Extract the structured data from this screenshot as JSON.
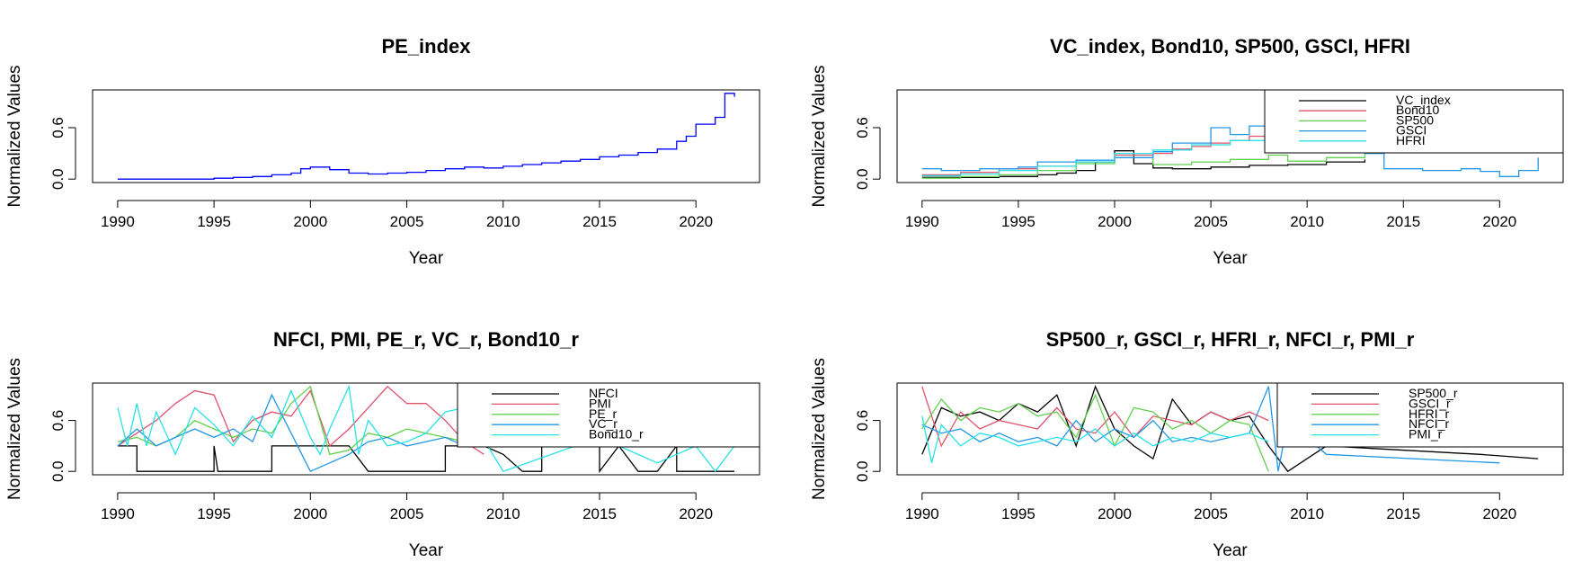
{
  "chart_data": [
    {
      "type": "line",
      "title": "PE_index",
      "xlabel": "Year",
      "ylabel": "Normalized Values",
      "xlim": [
        1988.7,
        2023.3
      ],
      "ylim": [
        -0.04,
        1.04
      ],
      "x_ticks": [
        "1990",
        "1995",
        "2000",
        "2005",
        "2010",
        "2015",
        "2020"
      ],
      "y_ticks": [
        "0.0",
        "0.6"
      ],
      "grid": false,
      "legend": null,
      "series": [
        {
          "color": "#0000FF",
          "step": true,
          "x": [
            1990,
            1991,
            1992,
            1993,
            1994,
            1995,
            1996,
            1997,
            1998,
            1999,
            1999.5,
            2000,
            2001,
            2002,
            2003,
            2004,
            2005,
            2006,
            2007,
            2008,
            2009,
            2010,
            2011,
            2012,
            2013,
            2014,
            2015,
            2016,
            2017,
            2018,
            2019,
            2019.5,
            2020,
            2021,
            2021.5,
            2022
          ],
          "values": [
            0.0,
            0.0,
            0.0,
            0.0,
            0.0,
            0.01,
            0.02,
            0.03,
            0.05,
            0.07,
            0.12,
            0.14,
            0.11,
            0.07,
            0.06,
            0.07,
            0.08,
            0.1,
            0.12,
            0.14,
            0.13,
            0.15,
            0.17,
            0.19,
            0.21,
            0.23,
            0.26,
            0.28,
            0.31,
            0.35,
            0.44,
            0.5,
            0.64,
            0.72,
            1.0,
            0.96
          ]
        }
      ]
    },
    {
      "type": "line",
      "title": "VC_index, Bond10, SP500, GSCI, HFRI",
      "xlabel": "Year",
      "ylabel": "Normalized Values",
      "xlim": [
        1988.7,
        2023.3
      ],
      "ylim": [
        -0.04,
        1.04
      ],
      "x_ticks": [
        "1990",
        "1995",
        "2000",
        "2005",
        "2010",
        "2015",
        "2020"
      ],
      "y_ticks": [
        "0.0",
        "0.6"
      ],
      "grid": false,
      "legend": "top-right",
      "series": [
        {
          "name": "VC_index",
          "color": "#000000",
          "step": true,
          "x": [
            1990,
            1992,
            1994,
            1996,
            1997,
            1998,
            1999,
            2000,
            2001,
            2002,
            2003,
            2005,
            2007,
            2009,
            2011,
            2013
          ],
          "values": [
            0.02,
            0.02,
            0.03,
            0.05,
            0.07,
            0.1,
            0.2,
            0.33,
            0.18,
            0.13,
            0.12,
            0.14,
            0.16,
            0.17,
            0.2,
            0.23
          ]
        },
        {
          "name": "Bond10",
          "color": "#DF536B",
          "step": true,
          "x": [
            1990,
            1992,
            1994,
            1996,
            1998,
            2000,
            2002,
            2003,
            2004,
            2005,
            2006,
            2007,
            2008,
            2009,
            2010,
            2012
          ],
          "values": [
            0.05,
            0.08,
            0.12,
            0.15,
            0.2,
            0.28,
            0.3,
            0.35,
            0.38,
            0.42,
            0.45,
            0.5,
            0.55,
            0.6,
            0.65,
            0.68
          ]
        },
        {
          "name": "SP500",
          "color": "#61D04F",
          "step": true,
          "x": [
            1990,
            1992,
            1994,
            1996,
            1998,
            2000,
            2002,
            2004,
            2006,
            2008,
            2009,
            2011,
            2013
          ],
          "values": [
            0.01,
            0.03,
            0.05,
            0.1,
            0.18,
            0.25,
            0.17,
            0.2,
            0.23,
            0.28,
            0.21,
            0.25,
            0.3
          ]
        },
        {
          "name": "GSCI",
          "color": "#2297E6",
          "step": true,
          "x": [
            1990,
            1991,
            1993,
            1995,
            1996,
            1998,
            2000,
            2002,
            2003,
            2005,
            2006,
            2007,
            2008,
            2013,
            2014,
            2016,
            2018,
            2019,
            2020,
            2021,
            2022
          ],
          "values": [
            0.12,
            0.1,
            0.12,
            0.14,
            0.2,
            0.22,
            0.25,
            0.32,
            0.42,
            0.6,
            0.52,
            0.62,
            0.9,
            0.3,
            0.12,
            0.1,
            0.12,
            0.09,
            0.03,
            0.1,
            0.25
          ]
        },
        {
          "name": "HFRI",
          "color": "#28E2E5",
          "step": true,
          "x": [
            1990,
            1992,
            1994,
            1996,
            1998,
            2000,
            2002,
            2004,
            2006,
            2008
          ],
          "values": [
            0.04,
            0.06,
            0.1,
            0.15,
            0.2,
            0.3,
            0.34,
            0.4,
            0.45,
            0.52
          ]
        }
      ]
    },
    {
      "type": "line",
      "title": "NFCI, PMI, PE_r, VC_r, Bond10_r",
      "xlabel": "Year",
      "ylabel": "Normalized Values",
      "xlim": [
        1988.7,
        2023.3
      ],
      "ylim": [
        -0.04,
        1.04
      ],
      "x_ticks": [
        "1990",
        "1995",
        "2000",
        "2005",
        "2010",
        "2015",
        "2020"
      ],
      "y_ticks": [
        "0.0",
        "0.6"
      ],
      "grid": false,
      "legend": "top-right",
      "series": [
        {
          "name": "NFCI",
          "color": "#000000",
          "x": [
            1990,
            1991,
            1991,
            1995,
            1995,
            1995.2,
            1998,
            1998,
            2002,
            2003,
            2007,
            2007,
            2009,
            2010,
            2011,
            2012,
            2012,
            2015,
            2015,
            2016,
            2017,
            2018,
            2019,
            2019,
            2020,
            2021,
            2022
          ],
          "values": [
            0.3,
            0.3,
            0.0,
            0.0,
            0.3,
            0.0,
            0.0,
            0.3,
            0.3,
            0.0,
            0.0,
            0.3,
            0.3,
            0.2,
            0.0,
            0.0,
            0.3,
            0.3,
            0.0,
            0.3,
            0.0,
            0.0,
            0.3,
            0.0,
            0.0,
            0.0,
            0.0
          ]
        },
        {
          "name": "PMI",
          "color": "#DF536B",
          "x": [
            1990,
            1991,
            1992,
            1993,
            1994,
            1995,
            1996,
            1997,
            1998,
            1999,
            2000,
            2001,
            2002,
            2003,
            2004,
            2005,
            2006,
            2007,
            2008,
            2009
          ],
          "values": [
            0.3,
            0.45,
            0.6,
            0.8,
            0.95,
            0.9,
            0.35,
            0.6,
            0.7,
            0.65,
            0.95,
            0.3,
            0.5,
            0.75,
            1.0,
            0.8,
            0.8,
            0.6,
            0.35,
            0.2
          ]
        },
        {
          "name": "PE_r",
          "color": "#61D04F",
          "x": [
            1990,
            1991,
            1992,
            1993,
            1994,
            1995,
            1996,
            1997,
            1998,
            1999,
            2000,
            2001,
            2002,
            2003,
            2004,
            2005,
            2006,
            2007,
            2008
          ],
          "values": [
            0.35,
            0.4,
            0.3,
            0.4,
            0.6,
            0.5,
            0.4,
            0.5,
            0.45,
            0.8,
            1.0,
            0.2,
            0.25,
            0.45,
            0.4,
            0.5,
            0.45,
            0.4,
            0.35
          ]
        },
        {
          "name": "VC_r",
          "color": "#2297E6",
          "x": [
            1990,
            1991,
            1992,
            1993,
            1994,
            1995,
            1996,
            1997,
            1998,
            1999,
            2000,
            2001,
            2002,
            2003,
            2004,
            2005,
            2006,
            2007,
            2008
          ],
          "values": [
            0.3,
            0.5,
            0.3,
            0.4,
            0.5,
            0.4,
            0.5,
            0.35,
            0.9,
            0.45,
            0.0,
            0.1,
            0.2,
            0.35,
            0.4,
            0.3,
            0.35,
            0.4,
            0.3
          ]
        },
        {
          "name": "Bond10_r",
          "color": "#28E2E5",
          "x": [
            1990,
            1990.5,
            1991,
            1991.5,
            1992,
            1993,
            1994,
            1995,
            1996,
            1997,
            1998,
            1999,
            2000,
            2000.5,
            2001,
            2002,
            2002.5,
            2003,
            2004,
            2005,
            2006,
            2007,
            2008,
            2010,
            2015,
            2018,
            2020,
            2021,
            2022
          ],
          "values": [
            0.75,
            0.3,
            0.8,
            0.3,
            0.7,
            0.2,
            0.75,
            0.55,
            0.3,
            0.65,
            0.4,
            0.95,
            0.4,
            0.2,
            0.5,
            1.0,
            0.2,
            0.6,
            0.3,
            0.35,
            0.45,
            0.7,
            0.75,
            0.0,
            0.4,
            0.1,
            0.3,
            0.0,
            0.3
          ]
        }
      ]
    },
    {
      "type": "line",
      "title": "SP500_r, GSCI_r, HFRI_r, NFCI_r, PMI_r",
      "xlabel": "Year",
      "ylabel": "Normalized Values",
      "xlim": [
        1988.7,
        2023.3
      ],
      "ylim": [
        -0.04,
        1.04
      ],
      "x_ticks": [
        "1990",
        "1995",
        "2000",
        "2005",
        "2010",
        "2015",
        "2020"
      ],
      "y_ticks": [
        "0.0",
        "0.6"
      ],
      "grid": false,
      "legend": "top-right",
      "series": [
        {
          "name": "SP500_r",
          "color": "#000000",
          "x": [
            1990,
            1991,
            1992,
            1993,
            1994,
            1995,
            1996,
            1997,
            1998,
            1999,
            2000,
            2001,
            2002,
            2003,
            2004,
            2005,
            2006,
            2007,
            2008,
            2009,
            2011,
            2019,
            2022
          ],
          "values": [
            0.2,
            0.75,
            0.65,
            0.7,
            0.6,
            0.8,
            0.7,
            0.9,
            0.3,
            1.0,
            0.5,
            0.3,
            0.15,
            0.85,
            0.55,
            0.7,
            0.6,
            0.65,
            0.3,
            0.0,
            0.3,
            0.2,
            0.15
          ]
        },
        {
          "name": "GSCI_r",
          "color": "#DF536B",
          "x": [
            1990,
            1991,
            1992,
            1993,
            1994,
            1995,
            1996,
            1997,
            1998,
            1999,
            2000,
            2001,
            2002,
            2003,
            2004,
            2005,
            2006,
            2007,
            2008
          ],
          "values": [
            1.0,
            0.3,
            0.7,
            0.5,
            0.6,
            0.55,
            0.5,
            0.75,
            0.5,
            0.45,
            0.7,
            0.4,
            0.65,
            0.6,
            0.55,
            0.7,
            0.6,
            0.7,
            0.6
          ]
        },
        {
          "name": "HFRI_r",
          "color": "#61D04F",
          "x": [
            1990,
            1991,
            1992,
            1993,
            1994,
            1995,
            1996,
            1997,
            1998,
            1999,
            2000,
            2001,
            2002,
            2003,
            2004,
            2005,
            2006,
            2007,
            2008
          ],
          "values": [
            0.5,
            0.85,
            0.6,
            0.75,
            0.7,
            0.8,
            0.65,
            0.7,
            0.4,
            0.9,
            0.3,
            0.75,
            0.7,
            0.5,
            0.6,
            0.45,
            0.6,
            0.55,
            0.0
          ]
        },
        {
          "name": "NFCI_r",
          "color": "#2297E6",
          "x": [
            1990,
            1991,
            1992,
            1993,
            1994,
            1995,
            1996,
            1997,
            1998,
            1999,
            2000,
            2001,
            2002,
            2003,
            2004,
            2005,
            2006,
            2007,
            2008,
            2008.5,
            2009,
            2011,
            2020
          ],
          "values": [
            0.55,
            0.45,
            0.5,
            0.35,
            0.45,
            0.35,
            0.4,
            0.3,
            0.6,
            0.35,
            0.5,
            0.4,
            0.6,
            0.35,
            0.4,
            0.35,
            0.4,
            0.45,
            1.0,
            0.0,
            0.6,
            0.2,
            0.1
          ]
        },
        {
          "name": "PMI_r",
          "color": "#28E2E5",
          "x": [
            1990,
            1990.5,
            1991,
            1992,
            1993,
            1994,
            1995,
            1996,
            1997,
            1998,
            1999,
            2000,
            2001,
            2002,
            2003,
            2004,
            2005,
            2006,
            2007,
            2008
          ],
          "values": [
            0.65,
            0.1,
            0.55,
            0.3,
            0.45,
            0.4,
            0.3,
            0.35,
            0.4,
            0.35,
            0.5,
            0.3,
            0.45,
            0.3,
            0.4,
            0.35,
            0.45,
            0.4,
            0.45,
            0.35
          ]
        }
      ]
    }
  ]
}
